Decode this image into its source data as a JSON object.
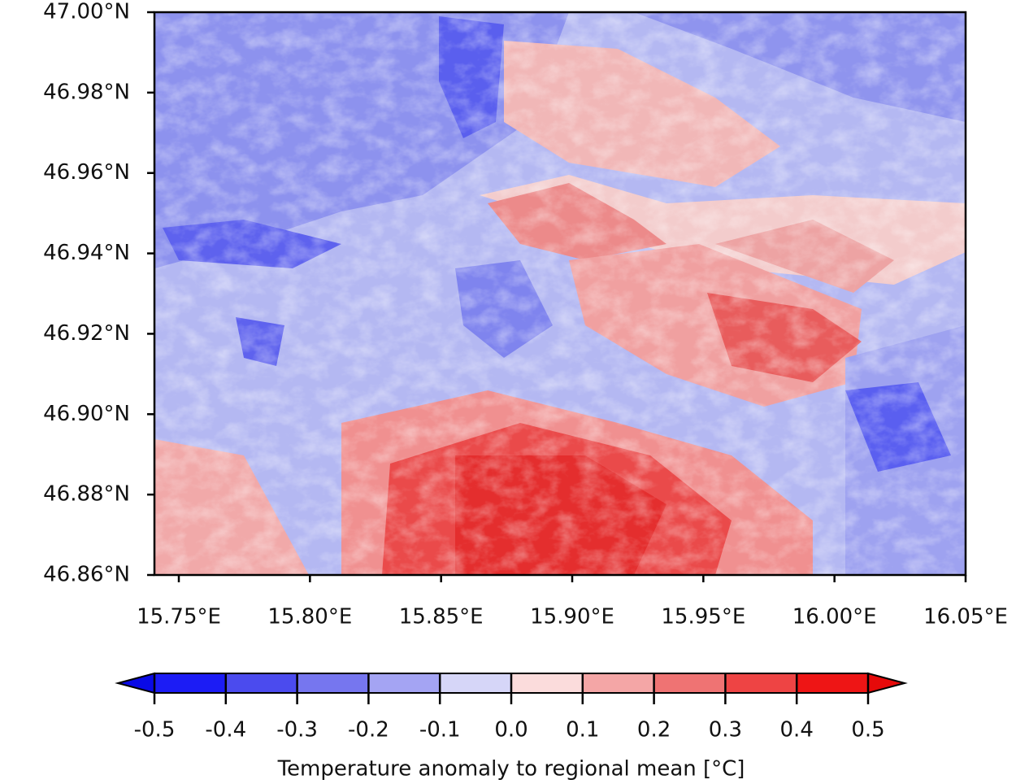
{
  "chart_data": {
    "type": "map",
    "xlim": [
      15.7407,
      16.05
    ],
    "ylim": [
      46.86,
      47.0
    ],
    "xticks": [
      {
        "value": 15.75,
        "label": "15.75°E"
      },
      {
        "value": 15.8,
        "label": "15.80°E"
      },
      {
        "value": 15.85,
        "label": "15.85°E"
      },
      {
        "value": 15.9,
        "label": "15.90°E"
      },
      {
        "value": 15.95,
        "label": "15.95°E"
      },
      {
        "value": 16.0,
        "label": "16.00°E"
      },
      {
        "value": 16.05,
        "label": "16.05°E"
      }
    ],
    "yticks": [
      {
        "value": 46.86,
        "label": "46.86°N"
      },
      {
        "value": 46.88,
        "label": "46.88°N"
      },
      {
        "value": 46.9,
        "label": "46.90°N"
      },
      {
        "value": 46.92,
        "label": "46.92°N"
      },
      {
        "value": 46.94,
        "label": "46.94°N"
      },
      {
        "value": 46.96,
        "label": "46.96°N"
      },
      {
        "value": 46.98,
        "label": "46.98°N"
      },
      {
        "value": 47.0,
        "label": "47.00°N"
      }
    ],
    "colorbar": {
      "ticks": [
        -0.5,
        -0.4,
        -0.3,
        -0.2,
        -0.1,
        {
          "value": 0,
          "label": "0.0"
        },
        0.1,
        0.2,
        0.3,
        0.4,
        0.5
      ],
      "colors": [
        "#1c1cf5",
        "#4b4bee",
        "#7676ef",
        "#a4a4f3",
        "#d6d6f8",
        "#fbdcdc",
        "#f4a6a6",
        "#ef7373",
        "#ee4444",
        "#ee1515"
      ],
      "extend_colors": [
        "#0a0ae6",
        "#e60a0a"
      ],
      "label": "Temperature anomaly to regional mean [°C]"
    }
  }
}
